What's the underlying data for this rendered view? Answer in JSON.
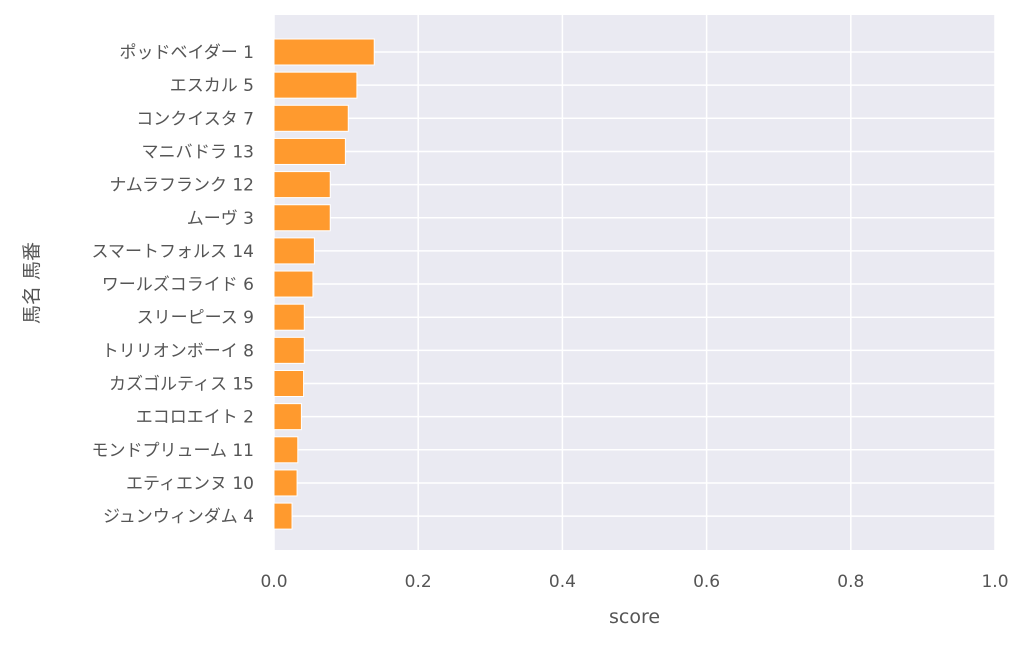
{
  "chart_data": {
    "type": "bar",
    "orientation": "horizontal",
    "categories": [
      "ポッドベイダー 1",
      "エスカル 5",
      "コンクイスタ 7",
      "マニバドラ 13",
      "ナムラフランク 12",
      "ムーヴ 3",
      "スマートフォルス 14",
      "ワールズコライド 6",
      "スリーピース 9",
      "トリリオンボーイ 8",
      "カズゴルティス 15",
      "エコロエイト 2",
      "モンドプリューム 11",
      "エティエンヌ 10",
      "ジュンウィンダム 4"
    ],
    "values": [
      0.139,
      0.115,
      0.103,
      0.099,
      0.078,
      0.078,
      0.056,
      0.054,
      0.042,
      0.042,
      0.041,
      0.038,
      0.033,
      0.032,
      0.025
    ],
    "xlabel": "score",
    "ylabel": "馬名 馬番",
    "xlim": [
      0.0,
      1.0
    ],
    "xticks": [
      "0.0",
      "0.2",
      "0.4",
      "0.6",
      "0.8",
      "1.0"
    ],
    "grid": true,
    "bar_color": "#ff9a2e",
    "background_color": "#eaeaf2"
  }
}
